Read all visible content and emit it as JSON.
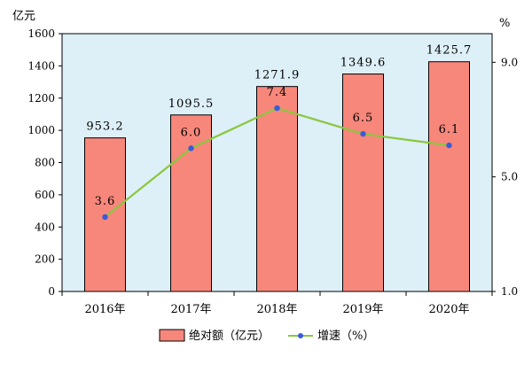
{
  "chart_data": {
    "type": "bar+line",
    "categories": [
      "2016年",
      "2017年",
      "2018年",
      "2019年",
      "2020年"
    ],
    "series": [
      {
        "name": "绝对额（亿元）",
        "type": "bar",
        "axis": "left",
        "values": [
          953.2,
          1095.5,
          1271.9,
          1349.6,
          1425.7
        ],
        "labels": [
          "953.2",
          "1095.5",
          "1271.9",
          "1349.6",
          "1425.7"
        ],
        "color": "#F7877B"
      },
      {
        "name": "增速（%）",
        "type": "line",
        "axis": "right",
        "values": [
          3.6,
          6.0,
          7.4,
          6.5,
          6.1
        ],
        "labels": [
          "3.6",
          "6.0",
          "7.4",
          "6.5",
          "6.1"
        ],
        "line_color": "#8CC63F",
        "marker_color": "#3A5BD9"
      }
    ],
    "y_left": {
      "label": "亿元",
      "ylim": [
        0,
        1600
      ],
      "ticks": [
        0,
        200,
        400,
        600,
        800,
        1000,
        1200,
        1400,
        1600
      ],
      "tick_labels": [
        "0",
        "200",
        "400",
        "600",
        "800",
        "1000",
        "1200",
        "1400",
        "1600"
      ]
    },
    "y_right": {
      "label": "%",
      "ylim": [
        1.0,
        10.0
      ],
      "ticks": [
        1.0,
        5.0,
        9.0
      ],
      "tick_labels": [
        "1.0",
        "5.0",
        "9.0"
      ]
    },
    "plot_background": "#DDEFF7",
    "bar_stroke": "#000000",
    "grid": false,
    "legend_position": "bottom"
  }
}
